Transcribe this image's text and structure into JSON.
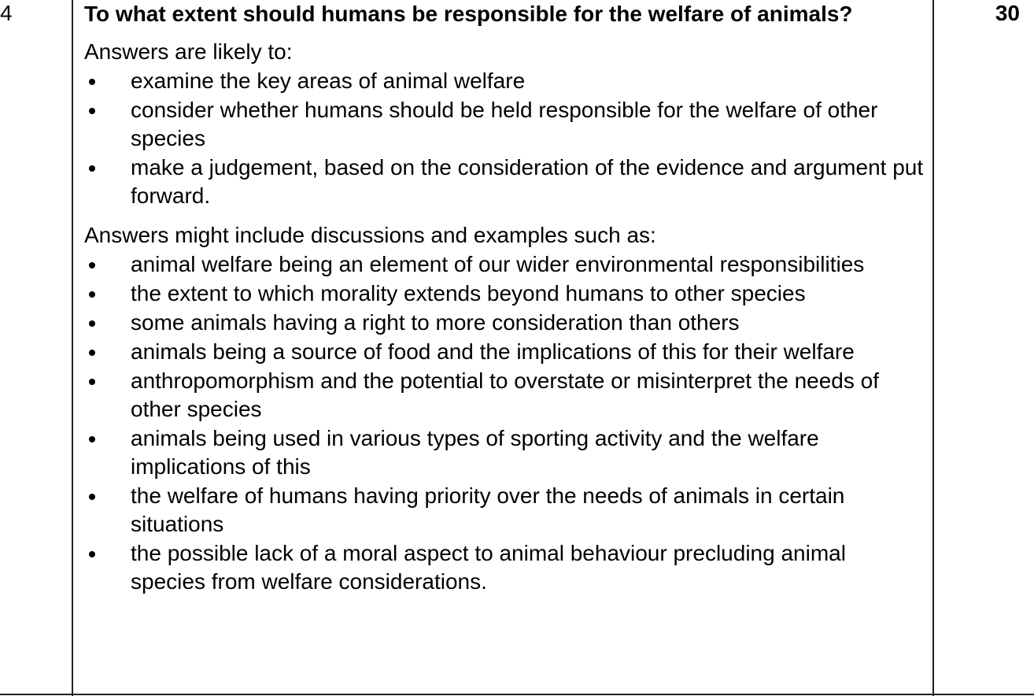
{
  "question": {
    "number": "4",
    "title": "To what extent should humans be responsible for the welfare of animals?",
    "marks": "30"
  },
  "likely": {
    "heading": "Answers are likely to:",
    "items": [
      "examine the key areas of animal welfare",
      "consider whether humans should be held responsible for the welfare of other species",
      "make a judgement, based on the consideration of the evidence and argument put forward."
    ]
  },
  "might_include": {
    "heading": "Answers might include discussions and examples such as:",
    "items": [
      "animal welfare being an element of our wider environmental responsibilities",
      "the extent to which morality extends beyond humans to other species",
      "some animals having a right to more consideration than others",
      "animals being a source of food and the implications of this for their welfare",
      "anthropomorphism and the potential to overstate or misinterpret the needs of other species",
      "animals being used in various types of sporting activity and the welfare implications of this",
      "the welfare of humans having priority over the needs of animals in certain situations",
      "the possible lack of a moral aspect to animal behaviour precluding animal species from welfare considerations."
    ]
  }
}
